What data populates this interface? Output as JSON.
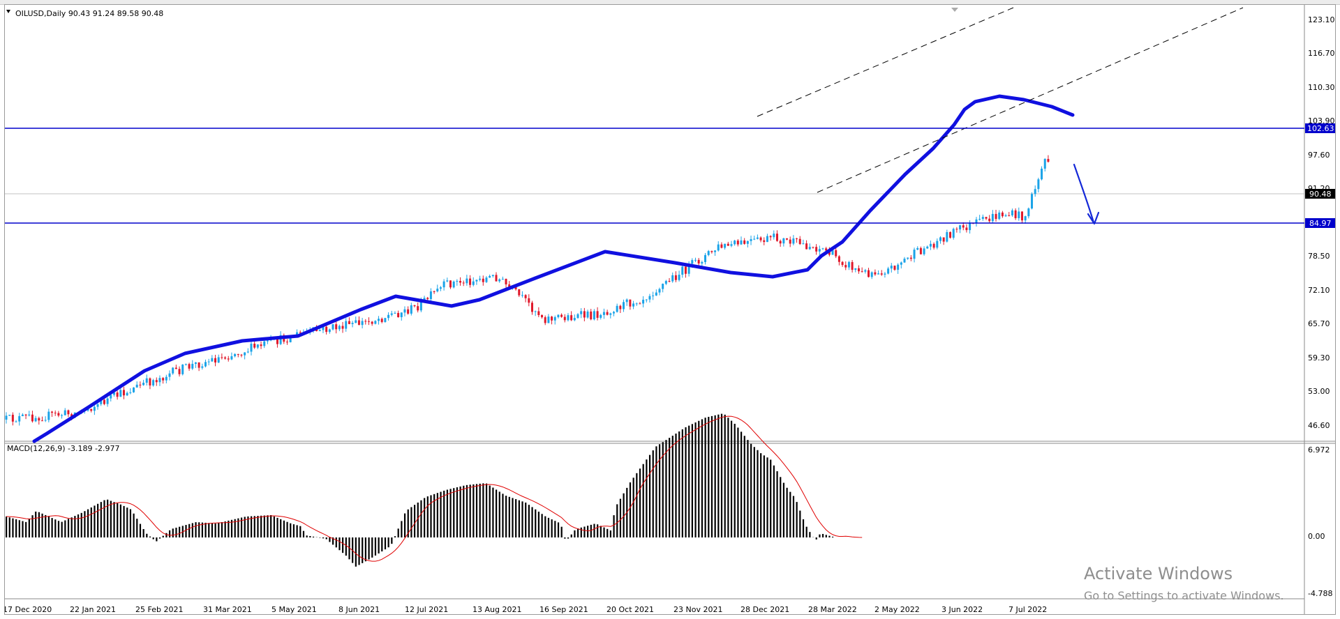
{
  "main_chart": {
    "header": "OILUSD,Daily  90.43 91.24 89.58 90.48",
    "price_axis": [
      "123.10",
      "116.70",
      "110.30",
      "103.90",
      "97.60",
      "91.20",
      "78.50",
      "72.10",
      "65.70",
      "59.30",
      "53.00",
      "46.60"
    ],
    "current_price": "90.48",
    "resistance_level": "102.63",
    "support_level": "84.97"
  },
  "macd": {
    "header": "MACD(12,26,9) -3.189 -2.977",
    "axis": [
      "6.972",
      "0.00",
      "-4.788"
    ]
  },
  "time_axis": [
    "17 Dec 2020",
    "22 Jan 2021",
    "25 Feb 2021",
    "31 Mar 2021",
    "5 May 2021",
    "8 Jun 2021",
    "12 Jul 2021",
    "13 Aug 2021",
    "16 Sep 2021",
    "20 Oct 2021",
    "23 Nov 2021",
    "28 Dec 2021",
    "28 Mar 2022",
    "2 May 2022",
    "3 Jun 2022",
    "7 Jul 2022"
  ],
  "watermark": {
    "line1": "Activate Windows",
    "line2": "Go to Settings to activate Windows."
  },
  "colors": {
    "bull_candle": "#1aa3e8",
    "bear_candle": "#e0182a",
    "moving_average": "#1010e0",
    "level_line": "#0000cc",
    "macd_signal": "#e00000",
    "macd_hist": "#000000"
  }
}
